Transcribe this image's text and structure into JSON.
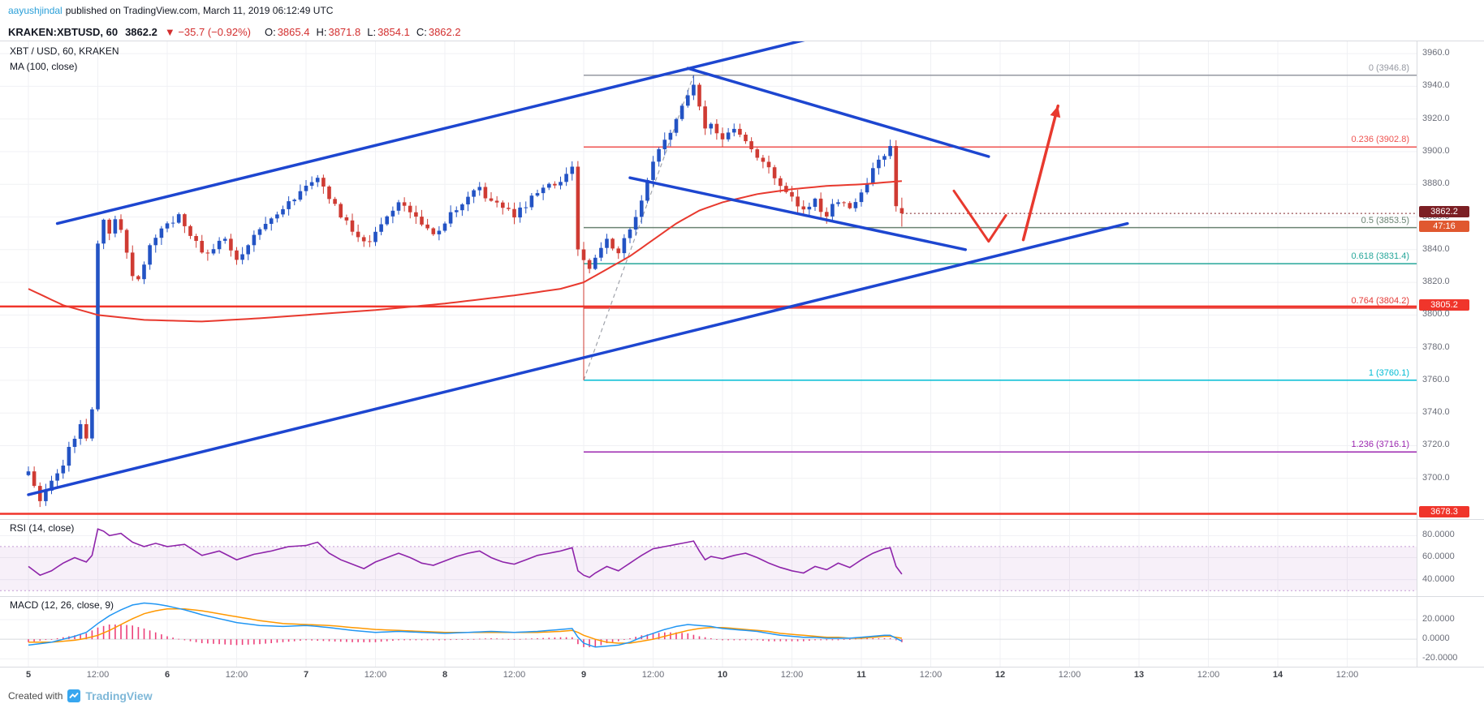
{
  "page": {
    "header": {
      "author": "aayushjindal",
      "published_text": "published on TradingView.com, March 11, 2019 06:12:49 UTC"
    },
    "footer": {
      "created_with": "Created with",
      "brand": "TradingView"
    }
  },
  "symbol_bar": {
    "symbol": "KRAKEN:XBTUSD, 60",
    "last": "3862.2",
    "direction": "▼",
    "change": "−35.7 (−0.92%)",
    "ohlc": [
      {
        "label": "O:",
        "value": "3865.4"
      },
      {
        "label": "H:",
        "value": "3871.8"
      },
      {
        "label": "L:",
        "value": "3854.1"
      },
      {
        "label": "C:",
        "value": "3862.2"
      }
    ]
  },
  "main_pane": {
    "legend_title": "XBT / USD, 60, KRAKEN",
    "legend_ma": "MA (100, close)"
  },
  "colors": {
    "up": "#2353c4",
    "down": "#cf3b33",
    "ma": "#e8392e",
    "trend": "#1d46d0",
    "grid": "#f0f1f4",
    "sep": "#d9dbe0",
    "axis_text": "#6a6d78",
    "rsi_line": "#8e24aa",
    "rsi_band_fill": "rgba(142,36,170,0.07)",
    "rsi_band_edge": "#c39bd3",
    "macd_line": "#2196f3",
    "macd_signal": "#ff9800",
    "macd_hist": "#ec407a",
    "swing_dash": "#a0a3ab",
    "arrow": "#e8392e",
    "price_line": "#f0352b",
    "last_tag_bg": "#7c1f24",
    "countdown_bg": "#e0582f",
    "hline_tag_bg": "#f0352b"
  },
  "chart_data": {
    "type": "candlestick",
    "title": "XBT / USD, 60, KRAKEN",
    "interval_minutes": 60,
    "hours": 152,
    "y_ticks": [
      3960,
      3940,
      3920,
      3900,
      3880,
      3860,
      3840,
      3820,
      3800,
      3780,
      3760,
      3740,
      3720,
      3700
    ],
    "x_labels": [
      {
        "t": 0,
        "text": "5",
        "major": true
      },
      {
        "t": 12,
        "text": "12:00"
      },
      {
        "t": 24,
        "text": "6",
        "major": true
      },
      {
        "t": 36,
        "text": "12:00"
      },
      {
        "t": 48,
        "text": "7",
        "major": true
      },
      {
        "t": 60,
        "text": "12:00"
      },
      {
        "t": 72,
        "text": "8",
        "major": true
      },
      {
        "t": 84,
        "text": "12:00"
      },
      {
        "t": 96,
        "text": "9",
        "major": true
      },
      {
        "t": 108,
        "text": "12:00"
      },
      {
        "t": 120,
        "text": "10",
        "major": true
      },
      {
        "t": 132,
        "text": "12:00"
      },
      {
        "t": 144,
        "text": "11",
        "major": true
      },
      {
        "t": 156,
        "text": "12:00"
      },
      {
        "t": 168,
        "text": "12",
        "major": true
      },
      {
        "t": 180,
        "text": "12:00"
      },
      {
        "t": 192,
        "text": "13",
        "major": true
      },
      {
        "t": 204,
        "text": "12:00"
      },
      {
        "t": 216,
        "text": "14",
        "major": true
      },
      {
        "t": 228,
        "text": "12:00"
      }
    ],
    "close_waypoints": [
      [
        0,
        3702
      ],
      [
        1,
        3694
      ],
      [
        2,
        3684
      ],
      [
        3,
        3690
      ],
      [
        4,
        3698
      ],
      [
        5,
        3702
      ],
      [
        6,
        3710
      ],
      [
        7,
        3718
      ],
      [
        8,
        3726
      ],
      [
        9,
        3732
      ],
      [
        10,
        3722
      ],
      [
        11,
        3742
      ],
      [
        12,
        3846
      ],
      [
        13,
        3856
      ],
      [
        14,
        3850
      ],
      [
        15,
        3861
      ],
      [
        16,
        3852
      ],
      [
        17,
        3838
      ],
      [
        18,
        3826
      ],
      [
        19,
        3821
      ],
      [
        20,
        3830
      ],
      [
        21,
        3843
      ],
      [
        22,
        3848
      ],
      [
        23,
        3852
      ],
      [
        24,
        3856
      ],
      [
        26,
        3861
      ],
      [
        28,
        3850
      ],
      [
        30,
        3836
      ],
      [
        32,
        3842
      ],
      [
        34,
        3848
      ],
      [
        36,
        3834
      ],
      [
        38,
        3844
      ],
      [
        40,
        3854
      ],
      [
        42,
        3858
      ],
      [
        44,
        3866
      ],
      [
        46,
        3872
      ],
      [
        48,
        3878
      ],
      [
        50,
        3886
      ],
      [
        52,
        3871
      ],
      [
        54,
        3862
      ],
      [
        56,
        3852
      ],
      [
        58,
        3843
      ],
      [
        60,
        3851
      ],
      [
        62,
        3859
      ],
      [
        64,
        3869
      ],
      [
        66,
        3864
      ],
      [
        68,
        3855
      ],
      [
        70,
        3851
      ],
      [
        72,
        3857
      ],
      [
        74,
        3866
      ],
      [
        76,
        3872
      ],
      [
        78,
        3876
      ],
      [
        80,
        3870
      ],
      [
        82,
        3864
      ],
      [
        84,
        3861
      ],
      [
        86,
        3868
      ],
      [
        88,
        3874
      ],
      [
        90,
        3878
      ],
      [
        92,
        3883
      ],
      [
        94,
        3890
      ],
      [
        95,
        3842
      ],
      [
        96,
        3833
      ],
      [
        97,
        3828
      ],
      [
        98,
        3835
      ],
      [
        100,
        3846
      ],
      [
        102,
        3839
      ],
      [
        104,
        3852
      ],
      [
        106,
        3872
      ],
      [
        108,
        3896
      ],
      [
        110,
        3906
      ],
      [
        112,
        3920
      ],
      [
        114,
        3936
      ],
      [
        115,
        3943
      ],
      [
        116,
        3928
      ],
      [
        117,
        3912
      ],
      [
        118,
        3917
      ],
      [
        119,
        3910
      ],
      [
        120,
        3906
      ],
      [
        122,
        3913
      ],
      [
        124,
        3908
      ],
      [
        126,
        3898
      ],
      [
        128,
        3891
      ],
      [
        130,
        3879
      ],
      [
        132,
        3871
      ],
      [
        134,
        3863
      ],
      [
        136,
        3869
      ],
      [
        138,
        3862
      ],
      [
        140,
        3871
      ],
      [
        142,
        3863
      ],
      [
        144,
        3876
      ],
      [
        146,
        3889
      ],
      [
        148,
        3899
      ],
      [
        149,
        3902
      ],
      [
        150,
        3866
      ],
      [
        151,
        3862.2
      ]
    ],
    "ma100_waypoints": [
      [
        0,
        3816
      ],
      [
        6,
        3806
      ],
      [
        12,
        3800
      ],
      [
        20,
        3797
      ],
      [
        30,
        3796
      ],
      [
        40,
        3798
      ],
      [
        48,
        3800
      ],
      [
        60,
        3803
      ],
      [
        72,
        3807
      ],
      [
        84,
        3812
      ],
      [
        92,
        3816
      ],
      [
        96,
        3820
      ],
      [
        100,
        3828
      ],
      [
        104,
        3836
      ],
      [
        108,
        3846
      ],
      [
        112,
        3856
      ],
      [
        116,
        3864
      ],
      [
        120,
        3869
      ],
      [
        126,
        3874
      ],
      [
        132,
        3877
      ],
      [
        138,
        3879
      ],
      [
        144,
        3880
      ],
      [
        151,
        3882
      ]
    ],
    "last_candle": {
      "open": 3865.4,
      "high": 3871.8,
      "low": 3854.1,
      "close": 3862.2
    },
    "last_price": 3862.2,
    "countdown": "47:16",
    "swing_low": {
      "t": 96,
      "price": 3760.1
    },
    "swing_high": {
      "t": 115,
      "price": 3946.8
    },
    "fib_levels": [
      {
        "label": "0",
        "price": 3946.8,
        "color": "#9598a1"
      },
      {
        "label": "0.236",
        "price": 3902.8,
        "color": "#ef5350"
      },
      {
        "label": "0.5",
        "price": 3853.5,
        "color": "#6a8372"
      },
      {
        "label": "0.618",
        "price": 3831.4,
        "color": "#26a69a"
      },
      {
        "label": "0.764",
        "price": 3804.2,
        "color": "#e53935"
      },
      {
        "label": "1",
        "price": 3760.1,
        "color": "#00bcd4"
      },
      {
        "label": "1.236",
        "price": 3716.1,
        "color": "#9c27b0"
      }
    ],
    "price_lines": [
      {
        "price": 3805.2,
        "tag": "3805.2"
      },
      {
        "price": 3678.3,
        "tag": "3678.3"
      }
    ],
    "trend_lines": [
      {
        "t1": 5,
        "p1": 3856,
        "t2": 143,
        "p2": 3976
      },
      {
        "t1": 0,
        "p1": 3690,
        "t2": 190,
        "p2": 3856
      },
      {
        "t1": 114,
        "p1": 3951,
        "t2": 166,
        "p2": 3897
      },
      {
        "t1": 104,
        "p1": 3884,
        "t2": 162,
        "p2": 3840
      }
    ],
    "arrows": {
      "v": [
        [
          160,
          3876
        ],
        [
          166,
          3845
        ],
        [
          169,
          3861
        ]
      ],
      "up": [
        [
          172,
          3846
        ],
        [
          178,
          3928
        ]
      ]
    },
    "rsi": {
      "label": "RSI (14, close)",
      "ticks": [
        80,
        60,
        40
      ],
      "band": [
        70,
        30
      ],
      "waypoints": [
        [
          0,
          52
        ],
        [
          2,
          44
        ],
        [
          4,
          48
        ],
        [
          6,
          55
        ],
        [
          8,
          60
        ],
        [
          10,
          56
        ],
        [
          11,
          62
        ],
        [
          12,
          86
        ],
        [
          13,
          84
        ],
        [
          14,
          80
        ],
        [
          16,
          82
        ],
        [
          18,
          74
        ],
        [
          20,
          70
        ],
        [
          22,
          73
        ],
        [
          24,
          70
        ],
        [
          27,
          72
        ],
        [
          30,
          62
        ],
        [
          33,
          66
        ],
        [
          36,
          58
        ],
        [
          39,
          63
        ],
        [
          42,
          66
        ],
        [
          45,
          70
        ],
        [
          48,
          71
        ],
        [
          50,
          74
        ],
        [
          52,
          64
        ],
        [
          54,
          58
        ],
        [
          56,
          54
        ],
        [
          58,
          50
        ],
        [
          60,
          56
        ],
        [
          62,
          60
        ],
        [
          64,
          64
        ],
        [
          66,
          60
        ],
        [
          68,
          55
        ],
        [
          70,
          53
        ],
        [
          72,
          57
        ],
        [
          74,
          61
        ],
        [
          76,
          64
        ],
        [
          78,
          66
        ],
        [
          80,
          60
        ],
        [
          82,
          56
        ],
        [
          84,
          54
        ],
        [
          86,
          58
        ],
        [
          88,
          62
        ],
        [
          90,
          64
        ],
        [
          92,
          66
        ],
        [
          94,
          69
        ],
        [
          95,
          48
        ],
        [
          96,
          44
        ],
        [
          97,
          42
        ],
        [
          98,
          46
        ],
        [
          100,
          52
        ],
        [
          102,
          48
        ],
        [
          104,
          55
        ],
        [
          106,
          62
        ],
        [
          108,
          68
        ],
        [
          110,
          70
        ],
        [
          112,
          72
        ],
        [
          114,
          74
        ],
        [
          115,
          75
        ],
        [
          116,
          66
        ],
        [
          117,
          58
        ],
        [
          118,
          61
        ],
        [
          120,
          59
        ],
        [
          122,
          62
        ],
        [
          124,
          64
        ],
        [
          126,
          60
        ],
        [
          128,
          55
        ],
        [
          130,
          51
        ],
        [
          132,
          48
        ],
        [
          134,
          46
        ],
        [
          136,
          52
        ],
        [
          138,
          49
        ],
        [
          140,
          55
        ],
        [
          142,
          51
        ],
        [
          144,
          58
        ],
        [
          146,
          64
        ],
        [
          148,
          68
        ],
        [
          149,
          69
        ],
        [
          150,
          52
        ],
        [
          151,
          45
        ]
      ]
    },
    "macd": {
      "label": "MACD (12, 26, close, 9)",
      "ticks": [
        20,
        0,
        -20
      ],
      "waypoints": [
        [
          0,
          -6,
          -3
        ],
        [
          4,
          -3,
          -3
        ],
        [
          8,
          3,
          -1
        ],
        [
          10,
          7,
          1
        ],
        [
          12,
          16,
          4
        ],
        [
          14,
          24,
          9
        ],
        [
          16,
          30,
          15
        ],
        [
          18,
          35,
          21
        ],
        [
          20,
          37,
          26
        ],
        [
          22,
          36,
          29
        ],
        [
          24,
          34,
          31
        ],
        [
          27,
          30,
          31
        ],
        [
          30,
          25,
          29
        ],
        [
          33,
          21,
          26
        ],
        [
          36,
          17,
          23
        ],
        [
          40,
          14,
          19
        ],
        [
          44,
          13,
          16
        ],
        [
          48,
          14,
          15
        ],
        [
          52,
          12,
          14
        ],
        [
          56,
          9,
          12
        ],
        [
          60,
          7,
          10
        ],
        [
          64,
          8,
          9
        ],
        [
          68,
          7,
          8
        ],
        [
          72,
          6,
          7
        ],
        [
          76,
          7,
          7
        ],
        [
          80,
          8,
          7
        ],
        [
          84,
          7,
          7
        ],
        [
          88,
          8,
          7
        ],
        [
          92,
          10,
          8
        ],
        [
          94,
          11,
          9
        ],
        [
          95,
          2,
          7
        ],
        [
          96,
          -4,
          4
        ],
        [
          98,
          -8,
          0
        ],
        [
          100,
          -7,
          -3
        ],
        [
          102,
          -6,
          -4
        ],
        [
          104,
          -3,
          -4
        ],
        [
          106,
          2,
          -2
        ],
        [
          108,
          6,
          0
        ],
        [
          110,
          10,
          3
        ],
        [
          112,
          13,
          6
        ],
        [
          114,
          15,
          9
        ],
        [
          116,
          14,
          11
        ],
        [
          118,
          13,
          12
        ],
        [
          120,
          11,
          12
        ],
        [
          122,
          10,
          11
        ],
        [
          124,
          9,
          10
        ],
        [
          126,
          8,
          9
        ],
        [
          128,
          6,
          8
        ],
        [
          130,
          4,
          6
        ],
        [
          132,
          3,
          5
        ],
        [
          134,
          2,
          4
        ],
        [
          136,
          2,
          3
        ],
        [
          138,
          1,
          2
        ],
        [
          140,
          1,
          2
        ],
        [
          142,
          1,
          1
        ],
        [
          144,
          2,
          1
        ],
        [
          146,
          3,
          2
        ],
        [
          148,
          4,
          3
        ],
        [
          149,
          4,
          3
        ],
        [
          150,
          1,
          2
        ],
        [
          151,
          -2,
          1
        ]
      ]
    }
  }
}
